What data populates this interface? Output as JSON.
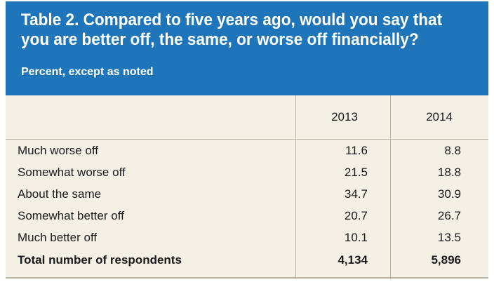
{
  "table": {
    "title_line1": "Table 2. Compared to five years ago, would you say that",
    "title_line2": "you are better off, the same, or worse off financially?",
    "subtitle": "Percent, except as noted",
    "columns": [
      "2013",
      "2014"
    ],
    "rows": [
      {
        "label": "Much worse off",
        "values": [
          "11.6",
          "8.8"
        ]
      },
      {
        "label": "Somewhat worse off",
        "values": [
          "21.5",
          "18.8"
        ]
      },
      {
        "label": "About the same",
        "values": [
          "34.7",
          "30.9"
        ]
      },
      {
        "label": "Somewhat better off",
        "values": [
          "20.7",
          "26.7"
        ]
      },
      {
        "label": "Much better off",
        "values": [
          "10.1",
          "13.5"
        ]
      },
      {
        "label": "Total number of respondents",
        "values": [
          "4,134",
          "5,896"
        ]
      }
    ]
  },
  "colors": {
    "header_bg": "#1f75ba",
    "table_bg": "#f4f0e5",
    "rule": "#b9b3a3"
  }
}
